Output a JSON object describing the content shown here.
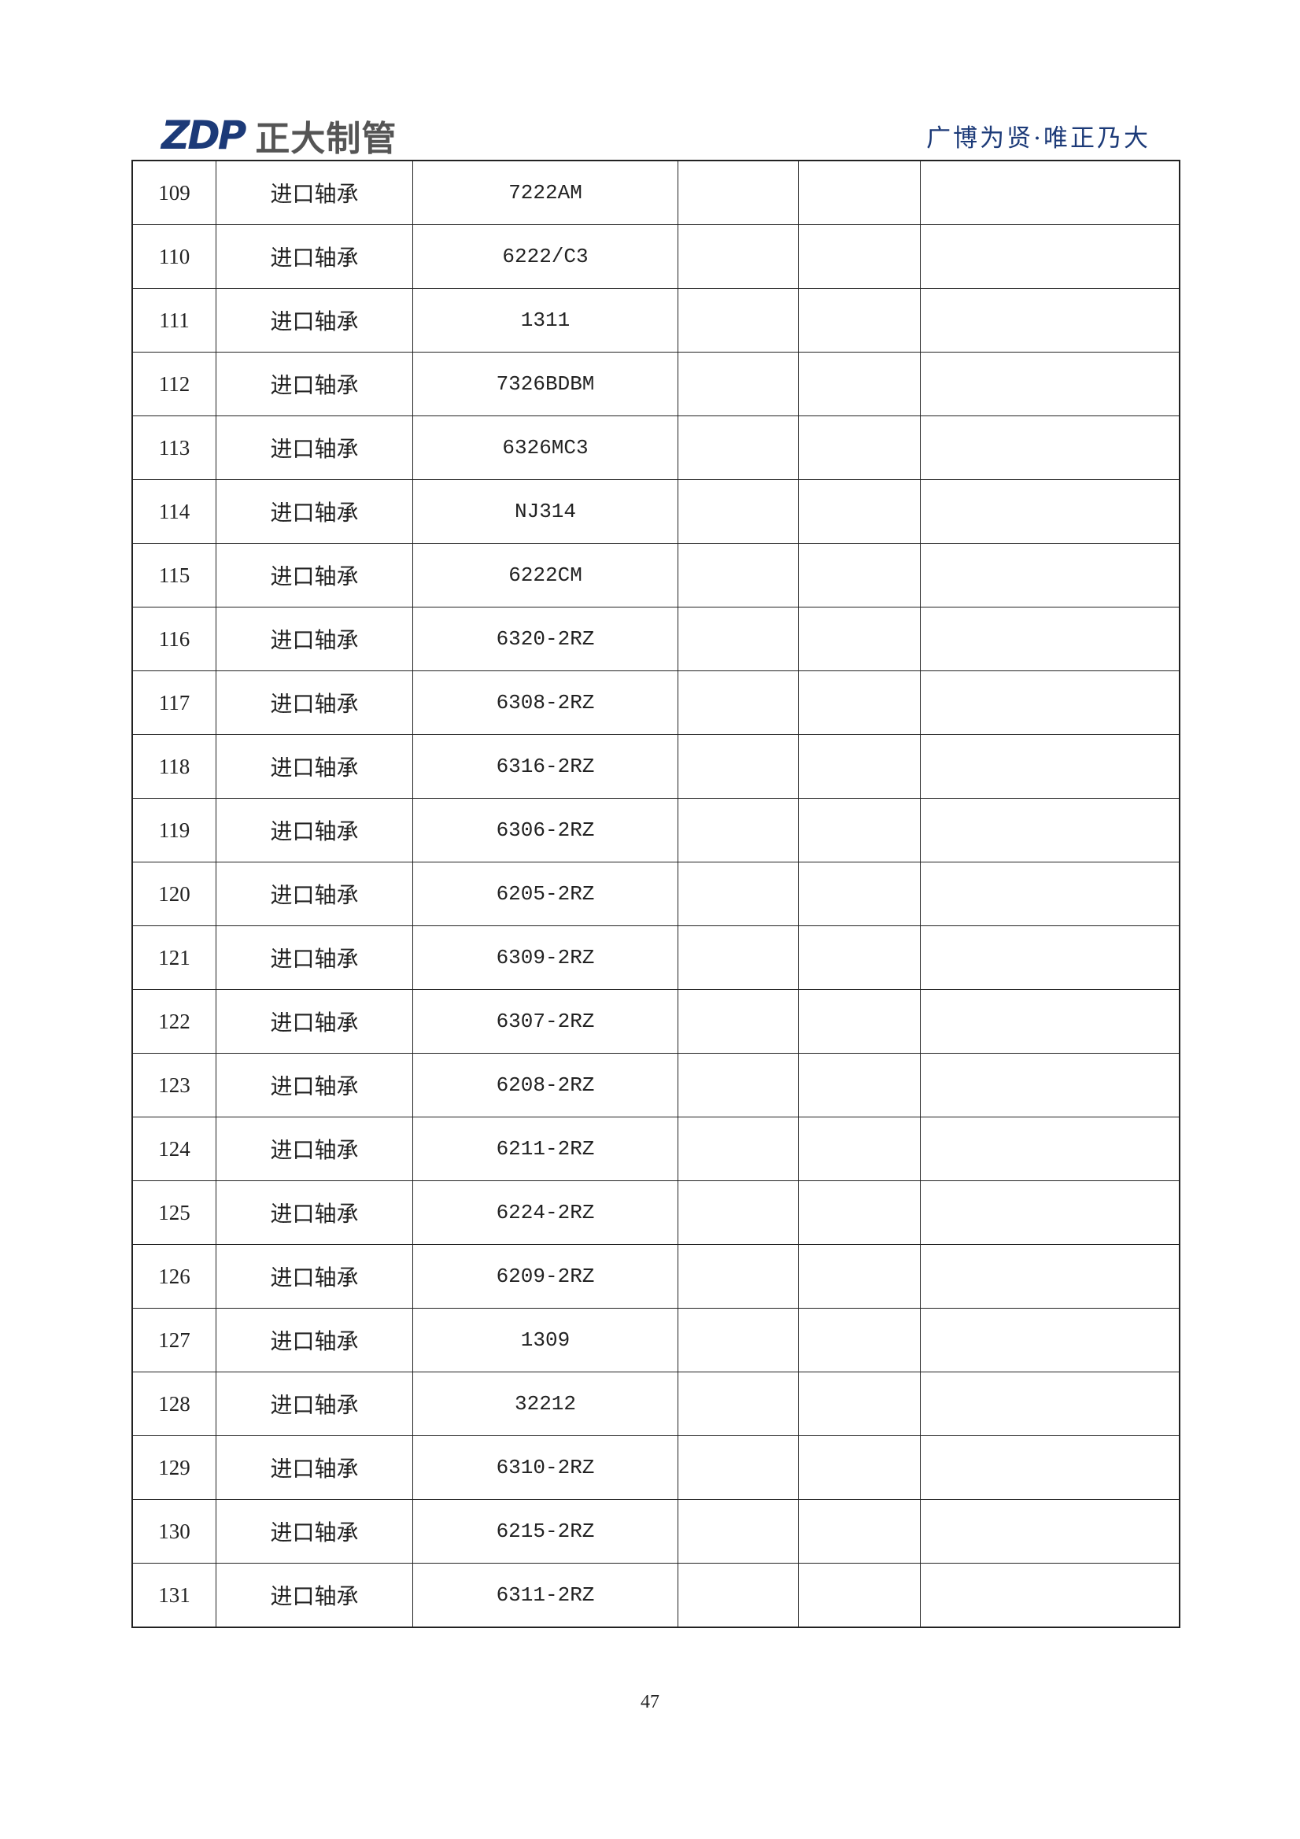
{
  "header": {
    "logo_mark": "ZDP",
    "logo_text": "正大制管",
    "slogan": "广博为贤·唯正乃大",
    "brand_color": "#1c3a78"
  },
  "table": {
    "rows": [
      [
        "109",
        "进口轴承",
        "7222AM"
      ],
      [
        "110",
        "进口轴承",
        "6222/C3"
      ],
      [
        "111",
        "进口轴承",
        "1311"
      ],
      [
        "112",
        "进口轴承",
        "7326BDBM"
      ],
      [
        "113",
        "进口轴承",
        "6326MC3"
      ],
      [
        "114",
        "进口轴承",
        "NJ314"
      ],
      [
        "115",
        "进口轴承",
        "6222CM"
      ],
      [
        "116",
        "进口轴承",
        "6320-2RZ"
      ],
      [
        "117",
        "进口轴承",
        "6308-2RZ"
      ],
      [
        "118",
        "进口轴承",
        "6316-2RZ"
      ],
      [
        "119",
        "进口轴承",
        "6306-2RZ"
      ],
      [
        "120",
        "进口轴承",
        "6205-2RZ"
      ],
      [
        "121",
        "进口轴承",
        "6309-2RZ"
      ],
      [
        "122",
        "进口轴承",
        "6307-2RZ"
      ],
      [
        "123",
        "进口轴承",
        "6208-2RZ"
      ],
      [
        "124",
        "进口轴承",
        "6211-2RZ"
      ],
      [
        "125",
        "进口轴承",
        "6224-2RZ"
      ],
      [
        "126",
        "进口轴承",
        "6209-2RZ"
      ],
      [
        "127",
        "进口轴承",
        "1309"
      ],
      [
        "128",
        "进口轴承",
        "32212"
      ],
      [
        "129",
        "进口轴承",
        "6310-2RZ"
      ],
      [
        "130",
        "进口轴承",
        "6215-2RZ"
      ],
      [
        "131",
        "进口轴承",
        "6311-2RZ"
      ]
    ]
  },
  "footer": {
    "page_number": "47"
  }
}
